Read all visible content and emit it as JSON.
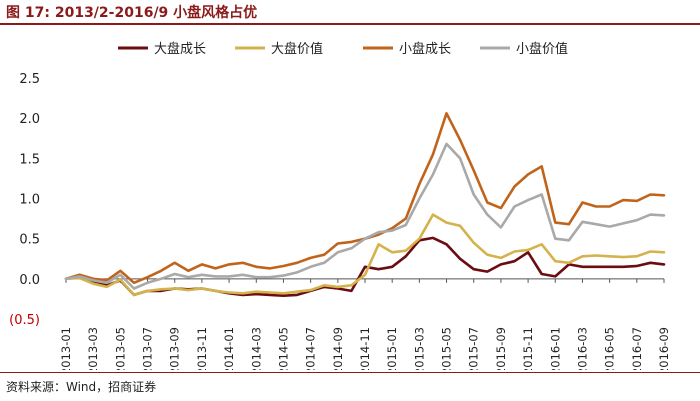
{
  "figure_label": "图 17:",
  "title": "2013/2-2016/9 小盘风格占优",
  "source": "资料来源：Wind，招商证券",
  "colors": {
    "title": "#8b1a1a",
    "large_growth": "#6b0c12",
    "large_value": "#d4b24c",
    "small_growth": "#c0641c",
    "small_value": "#a9a9a9",
    "negative_label": "#c00000"
  },
  "chart_data": {
    "type": "line",
    "title": "2013/2-2016/9 小盘风格占优",
    "xlabel": "",
    "ylabel": "",
    "ylim": [
      -0.5,
      2.5
    ],
    "yticks": [
      -0.5,
      0.0,
      0.5,
      1.0,
      1.5,
      2.0,
      2.5
    ],
    "ytick_labels": [
      "(0.5)",
      "0.0",
      "0.5",
      "1.0",
      "1.5",
      "2.0",
      "2.5"
    ],
    "grid": false,
    "legend_position": "top",
    "x": [
      "2013-01",
      "2013-02",
      "2013-03",
      "2013-04",
      "2013-05",
      "2013-06",
      "2013-07",
      "2013-08",
      "2013-09",
      "2013-10",
      "2013-11",
      "2013-12",
      "2014-01",
      "2014-02",
      "2014-03",
      "2014-04",
      "2014-05",
      "2014-06",
      "2014-07",
      "2014-08",
      "2014-09",
      "2014-10",
      "2014-11",
      "2014-12",
      "2015-01",
      "2015-02",
      "2015-03",
      "2015-04",
      "2015-05",
      "2015-06",
      "2015-07",
      "2015-08",
      "2015-09",
      "2015-10",
      "2015-11",
      "2015-12",
      "2016-01",
      "2016-02",
      "2016-03",
      "2016-04",
      "2016-05",
      "2016-06",
      "2016-07",
      "2016-08",
      "2016-09"
    ],
    "xtick_labels": [
      "2013-01",
      "2013-03",
      "2013-05",
      "2013-07",
      "2013-09",
      "2013-11",
      "2014-01",
      "2014-03",
      "2014-05",
      "2014-07",
      "2014-09",
      "2014-11",
      "2015-01",
      "2015-03",
      "2015-05",
      "2015-07",
      "2015-09",
      "2015-11",
      "2016-01",
      "2016-03",
      "2016-05",
      "2016-07",
      "2016-09"
    ],
    "series": [
      {
        "name": "大盘成长",
        "color": "#6b0c12",
        "values": [
          0.0,
          0.02,
          -0.05,
          -0.08,
          -0.02,
          -0.2,
          -0.15,
          -0.15,
          -0.12,
          -0.13,
          -0.12,
          -0.15,
          -0.18,
          -0.2,
          -0.19,
          -0.2,
          -0.21,
          -0.2,
          -0.15,
          -0.1,
          -0.12,
          -0.15,
          0.15,
          0.12,
          0.15,
          0.28,
          0.48,
          0.51,
          0.43,
          0.25,
          0.12,
          0.09,
          0.18,
          0.22,
          0.33,
          0.06,
          0.03,
          0.18,
          0.15,
          0.15,
          0.15,
          0.15,
          0.16,
          0.2,
          0.18
        ]
      },
      {
        "name": "大盘价值",
        "color": "#d4b24c",
        "values": [
          0.0,
          0.01,
          -0.06,
          -0.1,
          -0.01,
          -0.2,
          -0.15,
          -0.13,
          -0.12,
          -0.14,
          -0.12,
          -0.15,
          -0.17,
          -0.18,
          -0.16,
          -0.17,
          -0.18,
          -0.16,
          -0.14,
          -0.08,
          -0.1,
          -0.08,
          0.05,
          0.43,
          0.33,
          0.35,
          0.5,
          0.8,
          0.7,
          0.66,
          0.45,
          0.3,
          0.26,
          0.34,
          0.36,
          0.43,
          0.22,
          0.2,
          0.28,
          0.29,
          0.28,
          0.27,
          0.28,
          0.34,
          0.33
        ]
      },
      {
        "name": "小盘成长",
        "color": "#c0641c",
        "values": [
          0.0,
          0.05,
          0.0,
          -0.02,
          0.1,
          -0.05,
          0.02,
          0.1,
          0.2,
          0.1,
          0.18,
          0.13,
          0.18,
          0.2,
          0.15,
          0.13,
          0.16,
          0.2,
          0.26,
          0.3,
          0.44,
          0.46,
          0.5,
          0.55,
          0.63,
          0.75,
          1.18,
          1.55,
          2.06,
          1.73,
          1.35,
          0.95,
          0.88,
          1.15,
          1.3,
          1.4,
          0.7,
          0.68,
          0.95,
          0.9,
          0.9,
          0.98,
          0.97,
          1.05,
          1.04
        ]
      },
      {
        "name": "小盘价值",
        "color": "#a9a9a9",
        "values": [
          0.0,
          0.03,
          -0.02,
          -0.05,
          0.05,
          -0.12,
          -0.05,
          0.0,
          0.06,
          0.02,
          0.05,
          0.03,
          0.03,
          0.05,
          0.02,
          0.02,
          0.04,
          0.08,
          0.15,
          0.2,
          0.33,
          0.38,
          0.5,
          0.58,
          0.6,
          0.67,
          1.0,
          1.3,
          1.68,
          1.5,
          1.05,
          0.8,
          0.64,
          0.9,
          0.98,
          1.05,
          0.5,
          0.48,
          0.71,
          0.68,
          0.65,
          0.69,
          0.73,
          0.8,
          0.79
        ]
      }
    ]
  }
}
